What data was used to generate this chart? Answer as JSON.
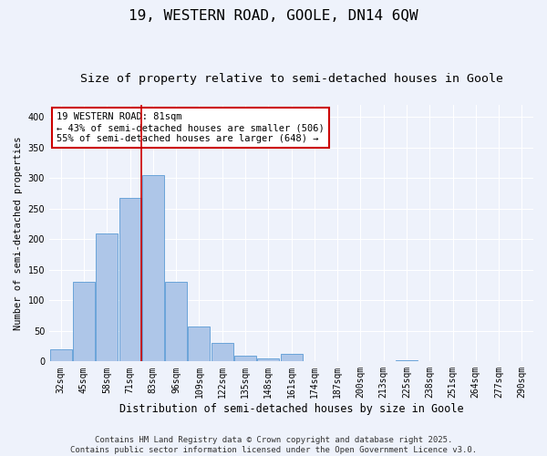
{
  "title": "19, WESTERN ROAD, GOOLE, DN14 6QW",
  "subtitle": "Size of property relative to semi-detached houses in Goole",
  "xlabel": "Distribution of semi-detached houses by size in Goole",
  "ylabel": "Number of semi-detached properties",
  "bin_labels": [
    "32sqm",
    "45sqm",
    "58sqm",
    "71sqm",
    "83sqm",
    "96sqm",
    "109sqm",
    "122sqm",
    "135sqm",
    "148sqm",
    "161sqm",
    "174sqm",
    "187sqm",
    "200sqm",
    "213sqm",
    "225sqm",
    "238sqm",
    "251sqm",
    "264sqm",
    "277sqm",
    "290sqm"
  ],
  "bar_values": [
    20,
    130,
    210,
    268,
    305,
    130,
    57,
    30,
    9,
    5,
    12,
    0,
    0,
    0,
    0,
    2,
    0,
    0,
    1,
    0,
    1
  ],
  "bar_color": "#aec6e8",
  "bar_edge_color": "#5b9bd5",
  "background_color": "#eef2fb",
  "grid_color": "#ffffff",
  "vline_color": "#cc0000",
  "annotation_text": "19 WESTERN ROAD: 81sqm\n← 43% of semi-detached houses are smaller (506)\n55% of semi-detached houses are larger (648) →",
  "annotation_box_color": "#ffffff",
  "annotation_box_edge": "#cc0000",
  "footnote": "Contains HM Land Registry data © Crown copyright and database right 2025.\nContains public sector information licensed under the Open Government Licence v3.0.",
  "ylim": [
    0,
    420
  ],
  "title_fontsize": 11.5,
  "subtitle_fontsize": 9.5,
  "xlabel_fontsize": 8.5,
  "ylabel_fontsize": 7.5,
  "tick_fontsize": 7,
  "footnote_fontsize": 6.5,
  "annotation_fontsize": 7.5
}
